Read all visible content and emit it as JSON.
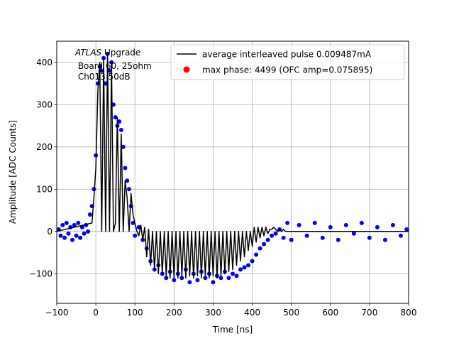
{
  "chart_data": {
    "type": "scatter",
    "title": "",
    "xlabel": "Time [ns]",
    "ylabel": "Amplitude [ADC Counts]",
    "xlim": [
      -100,
      800
    ],
    "ylim": [
      -170,
      450
    ],
    "xticks": [
      -100,
      0,
      100,
      200,
      300,
      400,
      500,
      600,
      700,
      800
    ],
    "xtick_labels": [
      "−100",
      "0",
      "100",
      "200",
      "300",
      "400",
      "500",
      "600",
      "700",
      "800"
    ],
    "yticks": [
      -100,
      0,
      100,
      200,
      300,
      400
    ],
    "ytick_labels": [
      "−100",
      "0",
      "100",
      "200",
      "300",
      "400"
    ],
    "grid": true,
    "legend_position": "top-right",
    "annotation": {
      "italic": "ATLAS",
      "rest": " Upgrade",
      "line2": " Board 60, 25ohm",
      "line3": " Ch013 50dB"
    },
    "series": [
      {
        "name": "average interleaved pulse 0.009487mA",
        "kind": "line",
        "color": "#000000",
        "x": [
          -100,
          -10,
          -5,
          0,
          5,
          10,
          15,
          20,
          25,
          30,
          35,
          40,
          45,
          50,
          55,
          60,
          65,
          70,
          75,
          80,
          85,
          90,
          95,
          100,
          105,
          110,
          115,
          120,
          125,
          130,
          135,
          140,
          145,
          150,
          155,
          160,
          165,
          170,
          175,
          180,
          185,
          190,
          195,
          200,
          205,
          210,
          215,
          220,
          225,
          230,
          235,
          240,
          245,
          250,
          255,
          260,
          265,
          270,
          275,
          280,
          285,
          290,
          295,
          300,
          305,
          310,
          315,
          320,
          325,
          330,
          335,
          340,
          345,
          350,
          355,
          360,
          365,
          370,
          375,
          380,
          385,
          390,
          395,
          400,
          405,
          410,
          415,
          420,
          425,
          430,
          435,
          440,
          445,
          450,
          455,
          460,
          465,
          470,
          475,
          480,
          485,
          490,
          500,
          520,
          800
        ],
        "y": [
          0,
          20,
          80,
          150,
          330,
          400,
          0,
          410,
          0,
          420,
          0,
          400,
          0,
          20,
          270,
          0,
          230,
          0,
          120,
          80,
          0,
          90,
          40,
          20,
          0,
          -10,
          15,
          -20,
          10,
          -60,
          5,
          -80,
          0,
          -90,
          0,
          -100,
          0,
          -100,
          0,
          -105,
          0,
          -110,
          0,
          -110,
          0,
          -110,
          0,
          -105,
          0,
          -110,
          0,
          -105,
          0,
          -110,
          0,
          -105,
          0,
          -110,
          0,
          -105,
          0,
          -110,
          0,
          -105,
          0,
          -110,
          0,
          -105,
          0,
          -100,
          0,
          -95,
          0,
          -90,
          0,
          -80,
          0,
          -70,
          0,
          -60,
          0,
          -45,
          0,
          -35,
          10,
          -25,
          10,
          -15,
          10,
          -10,
          10,
          -5,
          5,
          5,
          10,
          5,
          0,
          5,
          0,
          5,
          0,
          0,
          0,
          0,
          0
        ]
      },
      {
        "name": "max phase: 4499 (OFC amp=0.075895)",
        "kind": "scatter",
        "color": "#ff0000",
        "x": [],
        "y": []
      },
      {
        "name": "",
        "kind": "scatter",
        "color": "#0000ff",
        "x": [
          -95,
          -90,
          -85,
          -80,
          -75,
          -70,
          -65,
          -60,
          -55,
          -50,
          -45,
          -40,
          -35,
          -30,
          -25,
          -20,
          -15,
          -10,
          -5,
          0,
          5,
          10,
          15,
          20,
          25,
          30,
          35,
          40,
          45,
          50,
          55,
          60,
          65,
          70,
          75,
          80,
          85,
          90,
          95,
          100,
          110,
          120,
          130,
          140,
          150,
          160,
          170,
          180,
          190,
          200,
          210,
          220,
          230,
          240,
          250,
          260,
          270,
          280,
          290,
          300,
          310,
          320,
          330,
          340,
          350,
          360,
          370,
          380,
          390,
          400,
          410,
          420,
          430,
          440,
          450,
          460,
          470,
          480,
          490,
          500,
          520,
          540,
          560,
          580,
          600,
          620,
          640,
          660,
          680,
          700,
          720,
          740,
          760,
          780,
          795
        ],
        "y": [
          5,
          -10,
          15,
          -15,
          20,
          -5,
          10,
          -20,
          15,
          -10,
          20,
          -15,
          10,
          -5,
          15,
          0,
          40,
          60,
          100,
          180,
          350,
          390,
          380,
          410,
          350,
          420,
          380,
          400,
          300,
          270,
          250,
          260,
          240,
          200,
          150,
          120,
          100,
          60,
          20,
          -10,
          10,
          -20,
          -40,
          -70,
          -90,
          -80,
          -100,
          -110,
          -95,
          -115,
          -100,
          -110,
          -90,
          -120,
          -100,
          -115,
          -95,
          -110,
          -100,
          -120,
          -105,
          -110,
          -95,
          -110,
          -100,
          -105,
          -90,
          -85,
          -80,
          -70,
          -55,
          -40,
          -30,
          -20,
          -10,
          -5,
          5,
          -15,
          20,
          -20,
          15,
          -10,
          20,
          -15,
          10,
          -20,
          15,
          -5,
          20,
          -15,
          10,
          -20,
          15,
          -10,
          5
        ]
      }
    ]
  }
}
